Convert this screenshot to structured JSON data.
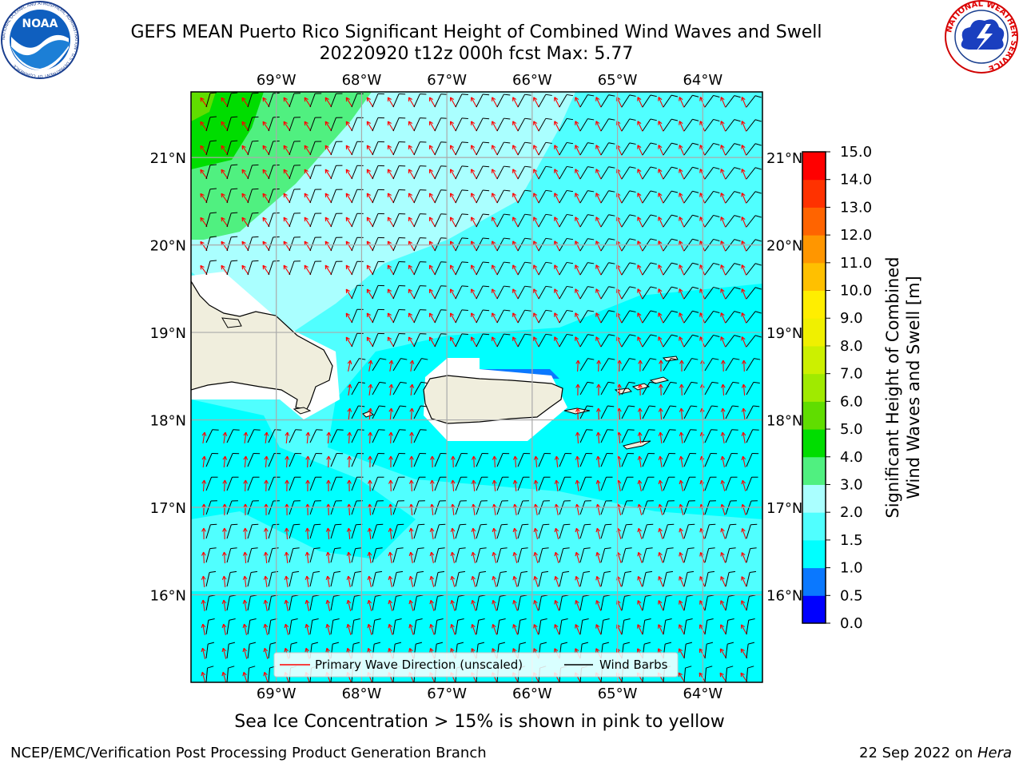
{
  "title_line1": "GEFS MEAN Puerto Rico Significant Height of Combined Wind Waves and Swell",
  "title_line2": "20220920 t12z 000h fcst   Max: 5.77",
  "noaa_logo": {
    "inner_text": "NOAA",
    "ring_text": "NATIONAL OCEANIC AND ATMOSPHERIC ADMINISTRATION · U.S. DEPARTMENT OF COMMERCE",
    "icon": "noaa-seagull-logo"
  },
  "nws_logo": {
    "ring_text": "NATIONAL WEATHER SERVICE",
    "icon": "nws-lightning-cloud-logo"
  },
  "map": {
    "lon_ticks": [
      "69°W",
      "68°W",
      "67°W",
      "66°W",
      "65°W",
      "64°W"
    ],
    "lat_ticks": [
      "21°N",
      "20°N",
      "19°N",
      "18°N",
      "17°N",
      "16°N"
    ],
    "lon_range": [
      -70.0,
      -63.3
    ],
    "lat_range": [
      15.0,
      21.75
    ],
    "land_color": "#f0eedd",
    "coast_color": "#000000"
  },
  "legend": {
    "wave_label": "Primary Wave Direction (unscaled)",
    "barb_label": "Wind Barbs",
    "wave_color": "#ff0000",
    "barb_color": "#000000"
  },
  "colorbar": {
    "label_line1": "Significant Height of Combined",
    "label_line2": "Wind Waves and Swell [m]",
    "ticks": [
      "0.0",
      "0.5",
      "1.0",
      "1.5",
      "2.0",
      "3.0",
      "4.0",
      "5.0",
      "6.0",
      "7.0",
      "8.0",
      "9.0",
      "10.0",
      "11.0",
      "12.0",
      "13.0",
      "14.0",
      "15.0"
    ],
    "colors": [
      "#0000ff",
      "#0a78ff",
      "#00ffff",
      "#50ffff",
      "#aaffff",
      "#50f080",
      "#00dd00",
      "#60dd00",
      "#a0ea00",
      "#ccf000",
      "#f0f000",
      "#ffee00",
      "#ffc000",
      "#ff9600",
      "#ff6400",
      "#ff3200",
      "#ff0000"
    ]
  },
  "sea_ice_note": "Sea Ice Concentration > 15% is shown in pink to yellow",
  "footer_left": "NCEP/EMC/Verification Post Processing Product Generation Branch",
  "footer_date": "22 Sep 2022 on ",
  "footer_host": "Hera"
}
